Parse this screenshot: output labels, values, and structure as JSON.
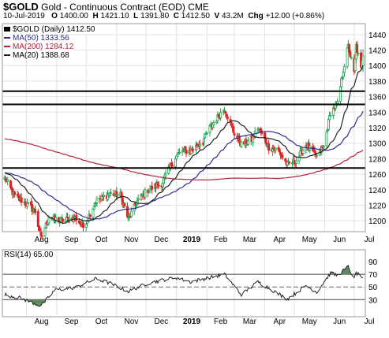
{
  "header": {
    "symbol": "$GOLD",
    "description": "Gold - Continuous Contract (EOD)",
    "exchange": "CME",
    "date": "10-Jul-2019",
    "open_label": "O",
    "open": "1400.00",
    "high_label": "H",
    "high": "1421.10",
    "low_label": "L",
    "low": "1391.80",
    "close_label": "C",
    "close": "1412.50",
    "volume_label": "V",
    "volume": "43.2M",
    "change_label": "Chg",
    "change": "+12.00 (+0.86%)"
  },
  "legend": {
    "price": "$GOLD (Daily) 1412.50",
    "ma50": "MA(50) 1333.56",
    "ma200": "MA(200) 1284.12",
    "ma20": "MA(20) 1388.68"
  },
  "rsi_label": "RSI(14) 65.00",
  "colors": {
    "up": "#16a34a",
    "down": "#dc2626",
    "ma50": "#2d2d8f",
    "ma200": "#b3203a",
    "ma20": "#222222",
    "rsi_line": "#222222",
    "rsi_fill": "#5d8a63"
  },
  "chart_data": [
    {
      "type": "candlestick",
      "title": "$GOLD Gold - Continuous Contract (EOD) CME",
      "x_tick_labels": [
        "Aug",
        "Sep",
        "Oct",
        "Nov",
        "Dec",
        "2019",
        "Feb",
        "Mar",
        "Apr",
        "May",
        "Jun",
        "Jul"
      ],
      "y_tick_labels": [
        "1200",
        "1220",
        "1240",
        "1260",
        "1280",
        "1300",
        "1320",
        "1340",
        "1360",
        "1380",
        "1400",
        "1420",
        "1440"
      ],
      "ylim": [
        1188,
        1452
      ],
      "grid": true,
      "legend_position": "top-left",
      "horizontal_levels": [
        1268,
        1350,
        1367
      ],
      "ohlc_anchors": [
        {
          "date": "2018-07-10",
          "close": 1255
        },
        {
          "date": "2018-07-20",
          "close": 1232
        },
        {
          "date": "2018-08-01",
          "close": 1222
        },
        {
          "date": "2018-08-10",
          "close": 1212
        },
        {
          "date": "2018-08-16",
          "close": 1177
        },
        {
          "date": "2018-08-24",
          "close": 1205
        },
        {
          "date": "2018-09-05",
          "close": 1200
        },
        {
          "date": "2018-09-20",
          "close": 1204
        },
        {
          "date": "2018-09-28",
          "close": 1192
        },
        {
          "date": "2018-10-11",
          "close": 1225
        },
        {
          "date": "2018-10-25",
          "close": 1235
        },
        {
          "date": "2018-11-05",
          "close": 1233
        },
        {
          "date": "2018-11-13",
          "close": 1202
        },
        {
          "date": "2018-11-22",
          "close": 1225
        },
        {
          "date": "2018-12-03",
          "close": 1240
        },
        {
          "date": "2018-12-17",
          "close": 1248
        },
        {
          "date": "2018-12-31",
          "close": 1282
        },
        {
          "date": "2019-01-07",
          "close": 1290
        },
        {
          "date": "2019-01-15",
          "close": 1290
        },
        {
          "date": "2019-01-28",
          "close": 1303
        },
        {
          "date": "2019-02-04",
          "close": 1320
        },
        {
          "date": "2019-02-19",
          "close": 1345
        },
        {
          "date": "2019-02-28",
          "close": 1315
        },
        {
          "date": "2019-03-08",
          "close": 1298
        },
        {
          "date": "2019-03-19",
          "close": 1305
        },
        {
          "date": "2019-03-25",
          "close": 1320
        },
        {
          "date": "2019-04-05",
          "close": 1295
        },
        {
          "date": "2019-04-15",
          "close": 1290
        },
        {
          "date": "2019-04-24",
          "close": 1272
        },
        {
          "date": "2019-05-03",
          "close": 1278
        },
        {
          "date": "2019-05-13",
          "close": 1298
        },
        {
          "date": "2019-05-24",
          "close": 1283
        },
        {
          "date": "2019-05-31",
          "close": 1295
        },
        {
          "date": "2019-06-07",
          "close": 1340
        },
        {
          "date": "2019-06-14",
          "close": 1350
        },
        {
          "date": "2019-06-20",
          "close": 1395
        },
        {
          "date": "2019-06-25",
          "close": 1425
        },
        {
          "date": "2019-07-01",
          "close": 1390
        },
        {
          "date": "2019-07-03",
          "close": 1425
        },
        {
          "date": "2019-07-08",
          "close": 1395
        },
        {
          "date": "2019-07-10",
          "close": 1412.5
        }
      ],
      "series": [
        {
          "name": "MA(50)",
          "value_last": 1333.56
        },
        {
          "name": "MA(200)",
          "value_last": 1284.12
        },
        {
          "name": "MA(20)",
          "value_last": 1388.68
        }
      ]
    },
    {
      "type": "line",
      "title": "RSI(14) 65.00",
      "y_tick_labels": [
        "30",
        "50",
        "70",
        "90"
      ],
      "ylim": [
        8,
        100
      ],
      "levels": [
        30,
        50,
        70
      ],
      "x_tick_labels": [
        "Aug",
        "Sep",
        "Oct",
        "Nov",
        "Dec",
        "2019",
        "Feb",
        "Mar",
        "Apr",
        "May",
        "Jun",
        "Jul"
      ],
      "anchors": [
        {
          "date": "2018-07-10",
          "value": 38
        },
        {
          "date": "2018-07-25",
          "value": 33
        },
        {
          "date": "2018-08-16",
          "value": 20
        },
        {
          "date": "2018-08-30",
          "value": 45
        },
        {
          "date": "2018-09-20",
          "value": 49
        },
        {
          "date": "2018-10-11",
          "value": 63
        },
        {
          "date": "2018-10-25",
          "value": 56
        },
        {
          "date": "2018-11-13",
          "value": 43
        },
        {
          "date": "2018-12-03",
          "value": 56
        },
        {
          "date": "2018-12-31",
          "value": 65
        },
        {
          "date": "2019-01-15",
          "value": 58
        },
        {
          "date": "2019-02-19",
          "value": 70
        },
        {
          "date": "2019-03-08",
          "value": 38
        },
        {
          "date": "2019-03-25",
          "value": 58
        },
        {
          "date": "2019-04-24",
          "value": 31
        },
        {
          "date": "2019-05-13",
          "value": 52
        },
        {
          "date": "2019-05-24",
          "value": 42
        },
        {
          "date": "2019-06-07",
          "value": 72
        },
        {
          "date": "2019-06-14",
          "value": 68
        },
        {
          "date": "2019-06-25",
          "value": 82
        },
        {
          "date": "2019-07-01",
          "value": 62
        },
        {
          "date": "2019-07-03",
          "value": 72
        },
        {
          "date": "2019-07-10",
          "value": 65
        }
      ]
    }
  ]
}
